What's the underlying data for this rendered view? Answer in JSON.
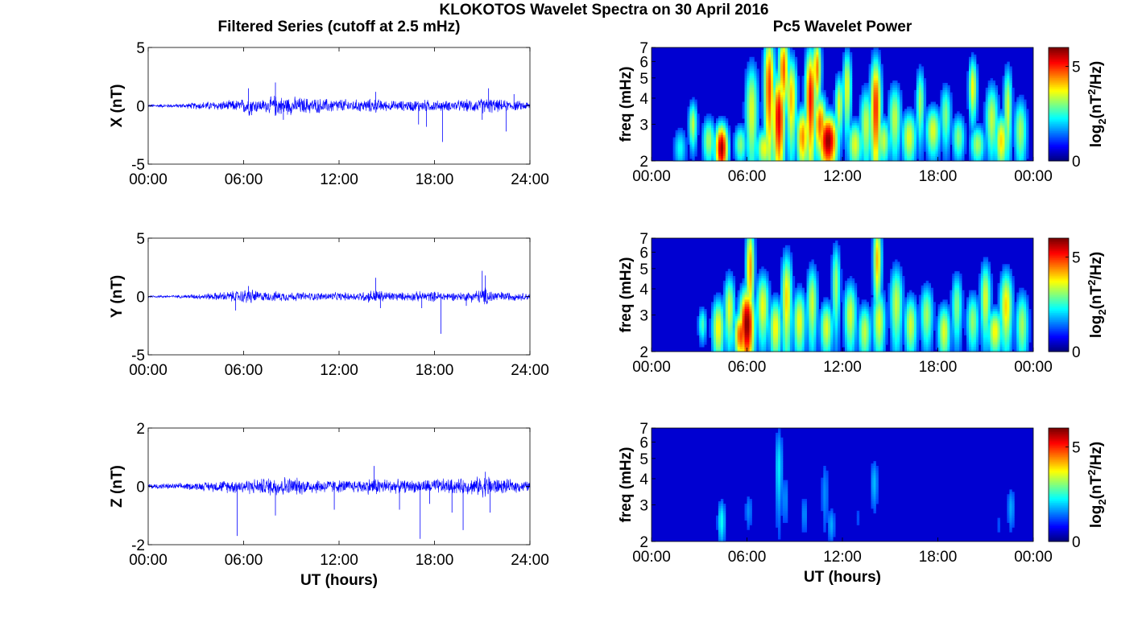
{
  "figure": {
    "title": "KLOKOTOS Wavelet Spectra on 30 April 2016",
    "left_title": "Filtered Series (cutoff at 2.5 mHz)",
    "right_title": "Pc5 Wavelet Power"
  },
  "colors": {
    "series_line": "#0000ff",
    "axes": "#000000",
    "background": "#ffffff"
  },
  "chart_data": [
    {
      "type": "line",
      "ylabel": "X (nT)",
      "xlabel": "",
      "x_ticks": [
        "00:00",
        "06:00",
        "12:00",
        "18:00",
        "24:00"
      ],
      "y_ticks": [
        "-5",
        "0",
        "5"
      ],
      "xlim": [
        0,
        24
      ],
      "ylim": [
        -5,
        5
      ],
      "series": [
        {
          "x": [
            0.0,
            2.0,
            3.0,
            4.0,
            5.0,
            5.8,
            6.3,
            6.6,
            7.0,
            7.5,
            8.0,
            8.4,
            9.0,
            10.0,
            11.0,
            12.0,
            13.0,
            14.3,
            15.0,
            16.0,
            17.0,
            17.6,
            18.5,
            19.0,
            20.0,
            20.8,
            21.4,
            22.0,
            23.0,
            24.0
          ],
          "amplitude": [
            0.15,
            0.2,
            0.35,
            0.45,
            0.5,
            0.6,
            1.0,
            0.8,
            0.6,
            0.7,
            1.1,
            0.9,
            0.9,
            0.8,
            0.7,
            0.7,
            0.6,
            0.7,
            0.5,
            0.5,
            0.6,
            0.6,
            0.5,
            0.5,
            0.6,
            0.7,
            0.8,
            0.6,
            0.5,
            0.4
          ],
          "spikes": [
            [
              6.3,
              1.5
            ],
            [
              6.5,
              -0.8
            ],
            [
              8.0,
              2.0
            ],
            [
              8.5,
              -1.2
            ],
            [
              14.3,
              1.2
            ],
            [
              17.0,
              -1.6
            ],
            [
              17.5,
              -1.8
            ],
            [
              18.5,
              -3.1
            ],
            [
              21.0,
              -1.2
            ],
            [
              21.4,
              1.5
            ],
            [
              22.5,
              -2.2
            ],
            [
              23.0,
              1.0
            ]
          ]
        }
      ]
    },
    {
      "type": "line",
      "ylabel": "Y (nT)",
      "xlabel": "",
      "x_ticks": [
        "00:00",
        "06:00",
        "12:00",
        "18:00",
        "24:00"
      ],
      "y_ticks": [
        "-5",
        "0",
        "5"
      ],
      "xlim": [
        0,
        24
      ],
      "ylim": [
        -5,
        5
      ],
      "series": [
        {
          "x": [
            0.0,
            2.0,
            3.0,
            4.0,
            5.0,
            5.8,
            6.3,
            6.6,
            7.0,
            7.5,
            8.0,
            9.0,
            10.0,
            11.0,
            12.0,
            13.0,
            14.3,
            15.0,
            16.0,
            17.0,
            18.0,
            18.5,
            19.0,
            20.0,
            20.8,
            21.2,
            22.0,
            23.0,
            24.0
          ],
          "amplitude": [
            0.12,
            0.15,
            0.25,
            0.35,
            0.5,
            0.6,
            0.8,
            0.7,
            0.5,
            0.45,
            0.5,
            0.45,
            0.4,
            0.4,
            0.4,
            0.4,
            0.7,
            0.5,
            0.4,
            0.5,
            0.5,
            0.5,
            0.4,
            0.45,
            0.7,
            0.9,
            0.5,
            0.4,
            0.35
          ],
          "spikes": [
            [
              5.5,
              -1.2
            ],
            [
              6.3,
              0.9
            ],
            [
              14.3,
              1.6
            ],
            [
              14.6,
              -1.0
            ],
            [
              17.2,
              -1.0
            ],
            [
              18.4,
              -3.2
            ],
            [
              20.0,
              -0.8
            ],
            [
              21.0,
              2.2
            ],
            [
              21.2,
              1.8
            ]
          ]
        }
      ]
    },
    {
      "type": "line",
      "ylabel": "Z (nT)",
      "xlabel": "UT (hours)",
      "x_ticks": [
        "00:00",
        "06:00",
        "12:00",
        "18:00",
        "24:00"
      ],
      "y_ticks": [
        "-2",
        "0",
        "2"
      ],
      "xlim": [
        0,
        24
      ],
      "ylim": [
        -2,
        2
      ],
      "series": [
        {
          "x": [
            0.0,
            2.0,
            3.0,
            4.0,
            5.0,
            5.8,
            6.3,
            7.0,
            8.0,
            8.5,
            9.0,
            10.0,
            11.0,
            12.0,
            13.0,
            14.3,
            15.0,
            16.0,
            17.0,
            18.0,
            19.0,
            20.0,
            20.5,
            21.0,
            21.4,
            22.0,
            23.0,
            24.0
          ],
          "amplitude": [
            0.1,
            0.12,
            0.15,
            0.2,
            0.25,
            0.28,
            0.3,
            0.3,
            0.4,
            0.4,
            0.35,
            0.3,
            0.28,
            0.25,
            0.25,
            0.35,
            0.3,
            0.25,
            0.25,
            0.3,
            0.3,
            0.3,
            0.35,
            0.4,
            0.45,
            0.3,
            0.25,
            0.2
          ],
          "spikes": [
            [
              5.6,
              -1.7
            ],
            [
              8.0,
              -1.0
            ],
            [
              11.7,
              -0.8
            ],
            [
              14.2,
              0.7
            ],
            [
              15.8,
              -0.8
            ],
            [
              17.1,
              -1.8
            ],
            [
              17.7,
              -0.6
            ],
            [
              19.1,
              -0.9
            ],
            [
              19.8,
              -1.5
            ],
            [
              21.2,
              0.5
            ],
            [
              21.5,
              -0.9
            ]
          ]
        }
      ]
    },
    {
      "type": "heatmap",
      "ylabel": "freq (mHz)",
      "xlabel": "",
      "x_ticks": [
        "00:00",
        "06:00",
        "12:00",
        "18:00",
        "00:00"
      ],
      "y_ticks": [
        "2",
        "3",
        "4",
        "5",
        "6",
        "7"
      ],
      "xlim": [
        0,
        24
      ],
      "ylim": [
        2,
        7
      ],
      "y_scale": "log",
      "colorbar": {
        "label": "log₂(nT²/Hz)",
        "label_base": "log",
        "label_sub": "2",
        "label_open": "(nT",
        "label_sup": "2",
        "label_close": "/Hz)",
        "ticks": [
          "0",
          "5"
        ],
        "range": [
          0,
          6
        ]
      },
      "blobs": [
        [
          4.4,
          2.3,
          0.3,
          0.5,
          5.8
        ],
        [
          2.6,
          3.0,
          0.2,
          0.6,
          3.2
        ],
        [
          3.6,
          2.5,
          0.3,
          0.5,
          3.0
        ],
        [
          5.6,
          2.4,
          0.3,
          0.4,
          2.8
        ],
        [
          6.3,
          3.5,
          0.3,
          1.6,
          3.4
        ],
        [
          7.4,
          4.5,
          0.25,
          2.5,
          4.8
        ],
        [
          7.1,
          2.3,
          0.4,
          0.4,
          3.5
        ],
        [
          8.0,
          3.2,
          0.3,
          1.4,
          5.4
        ],
        [
          8.3,
          5.5,
          0.25,
          1.8,
          4.6
        ],
        [
          8.8,
          4.0,
          0.25,
          1.6,
          4.0
        ],
        [
          9.5,
          2.6,
          0.3,
          0.7,
          4.3
        ],
        [
          10.0,
          4.0,
          0.25,
          2.0,
          5.2
        ],
        [
          10.4,
          5.5,
          0.2,
          1.6,
          4.4
        ],
        [
          11.1,
          2.5,
          0.45,
          0.6,
          5.9
        ],
        [
          10.6,
          3.0,
          0.3,
          0.8,
          4.6
        ],
        [
          11.8,
          3.7,
          0.2,
          1.0,
          3.4
        ],
        [
          12.3,
          4.5,
          0.2,
          1.6,
          3.5
        ],
        [
          12.8,
          2.4,
          0.35,
          0.5,
          3.4
        ],
        [
          13.5,
          3.0,
          0.3,
          1.0,
          3.2
        ],
        [
          14.1,
          3.6,
          0.25,
          1.8,
          5.0
        ],
        [
          14.6,
          2.5,
          0.3,
          0.5,
          3.2
        ],
        [
          15.3,
          3.2,
          0.3,
          1.0,
          3.2
        ],
        [
          16.2,
          2.6,
          0.35,
          0.6,
          3.4
        ],
        [
          16.9,
          3.8,
          0.2,
          1.2,
          3.0
        ],
        [
          17.7,
          2.8,
          0.35,
          0.6,
          3.4
        ],
        [
          18.5,
          3.3,
          0.25,
          0.9,
          2.8
        ],
        [
          19.3,
          2.6,
          0.3,
          0.5,
          2.8
        ],
        [
          20.2,
          4.5,
          0.2,
          1.2,
          3.6
        ],
        [
          20.5,
          2.4,
          0.35,
          0.4,
          3.0
        ],
        [
          21.4,
          3.2,
          0.3,
          1.0,
          3.2
        ],
        [
          22.0,
          2.5,
          0.3,
          0.6,
          3.8
        ],
        [
          22.4,
          3.6,
          0.2,
          1.4,
          3.3
        ],
        [
          23.2,
          2.8,
          0.3,
          0.8,
          3.0
        ],
        [
          1.8,
          2.3,
          0.3,
          0.4,
          2.0
        ]
      ]
    },
    {
      "type": "heatmap",
      "ylabel": "freq (mHz)",
      "xlabel": "",
      "x_ticks": [
        "00:00",
        "06:00",
        "12:00",
        "18:00",
        "00:00"
      ],
      "y_ticks": [
        "2",
        "3",
        "4",
        "5",
        "6",
        "7"
      ],
      "xlim": [
        0,
        24
      ],
      "ylim": [
        2,
        7
      ],
      "y_scale": "log",
      "colorbar": {
        "label": "log₂(nT²/Hz)",
        "label_base": "log",
        "label_sub": "2",
        "label_open": "(nT",
        "label_sup": "2",
        "label_close": "/Hz)",
        "ticks": [
          "0",
          "5"
        ],
        "range": [
          0,
          6
        ]
      },
      "blobs": [
        [
          6.0,
          2.7,
          0.35,
          0.9,
          6.0
        ],
        [
          5.6,
          2.4,
          0.3,
          0.5,
          4.8
        ],
        [
          6.2,
          5.0,
          0.2,
          2.2,
          4.2
        ],
        [
          4.2,
          2.6,
          0.3,
          0.7,
          3.6
        ],
        [
          4.9,
          3.2,
          0.25,
          1.0,
          3.4
        ],
        [
          3.2,
          2.7,
          0.2,
          0.4,
          2.4
        ],
        [
          7.0,
          3.3,
          0.3,
          1.0,
          3.5
        ],
        [
          7.8,
          2.6,
          0.3,
          0.7,
          3.6
        ],
        [
          8.5,
          3.6,
          0.25,
          1.6,
          3.8
        ],
        [
          9.3,
          2.8,
          0.3,
          0.8,
          3.5
        ],
        [
          10.1,
          3.4,
          0.25,
          1.2,
          3.3
        ],
        [
          11.0,
          2.6,
          0.3,
          0.6,
          3.4
        ],
        [
          11.6,
          4.2,
          0.2,
          1.6,
          3.0
        ],
        [
          12.5,
          3.0,
          0.3,
          0.9,
          3.3
        ],
        [
          13.4,
          2.5,
          0.3,
          0.6,
          3.2
        ],
        [
          14.2,
          5.5,
          0.2,
          2.0,
          4.0
        ],
        [
          14.3,
          2.8,
          0.3,
          0.8,
          3.4
        ],
        [
          15.4,
          3.4,
          0.3,
          1.2,
          3.2
        ],
        [
          16.3,
          2.7,
          0.3,
          0.7,
          3.3
        ],
        [
          17.3,
          3.0,
          0.3,
          0.8,
          3.0
        ],
        [
          18.4,
          2.5,
          0.3,
          0.6,
          3.4
        ],
        [
          19.2,
          3.3,
          0.25,
          1.0,
          2.8
        ],
        [
          20.2,
          2.8,
          0.3,
          0.7,
          2.9
        ],
        [
          21.0,
          3.6,
          0.25,
          1.2,
          3.4
        ],
        [
          21.6,
          2.5,
          0.35,
          0.5,
          3.6
        ],
        [
          22.3,
          3.3,
          0.3,
          1.1,
          3.8
        ],
        [
          23.3,
          2.7,
          0.3,
          0.8,
          3.0
        ]
      ]
    },
    {
      "type": "heatmap",
      "ylabel": "freq (mHz)",
      "xlabel": "UT (hours)",
      "x_ticks": [
        "00:00",
        "06:00",
        "12:00",
        "18:00",
        "00:00"
      ],
      "y_ticks": [
        "2",
        "3",
        "4",
        "5",
        "6",
        "7"
      ],
      "xlim": [
        0,
        24
      ],
      "ylim": [
        2,
        7
      ],
      "y_scale": "log",
      "colorbar": {
        "label": "log₂(nT²/Hz)",
        "label_base": "log",
        "label_sub": "2",
        "label_open": "(nT",
        "label_sup": "2",
        "label_close": "/Hz)",
        "ticks": [
          "0",
          "5"
        ],
        "range": [
          0,
          6
        ]
      },
      "blobs": [
        [
          4.4,
          2.5,
          0.2,
          0.5,
          2.0
        ],
        [
          6.1,
          2.8,
          0.2,
          0.5,
          1.2
        ],
        [
          8.0,
          4.5,
          0.2,
          1.8,
          1.8
        ],
        [
          8.4,
          3.2,
          0.2,
          0.8,
          1.2
        ],
        [
          9.6,
          2.7,
          0.2,
          0.5,
          1.2
        ],
        [
          10.9,
          3.4,
          0.2,
          1.2,
          1.2
        ],
        [
          11.3,
          2.4,
          0.2,
          0.4,
          1.4
        ],
        [
          14.0,
          3.8,
          0.2,
          0.9,
          1.5
        ],
        [
          13.0,
          2.6,
          0.2,
          0.4,
          0.8
        ],
        [
          22.6,
          2.9,
          0.2,
          0.6,
          1.4
        ],
        [
          21.8,
          2.4,
          0.2,
          0.4,
          0.8
        ]
      ]
    }
  ]
}
